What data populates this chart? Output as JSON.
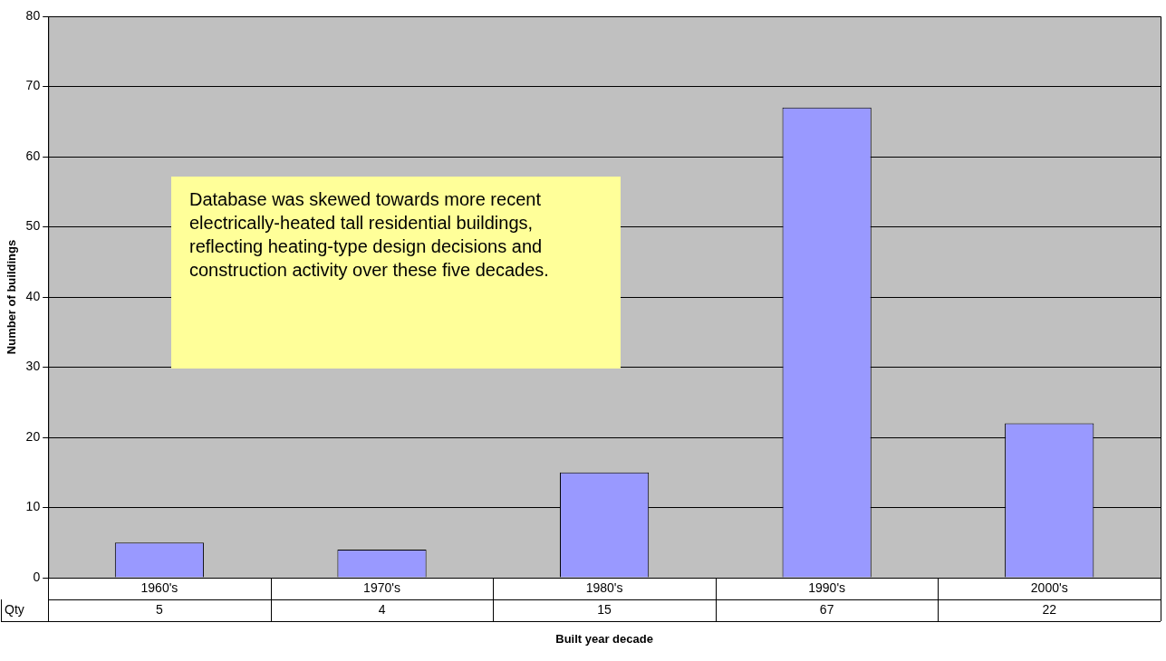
{
  "chart_data": {
    "type": "bar",
    "xlabel": "Built year decade",
    "ylabel": "Number of buildings",
    "categories": [
      "1960's",
      "1970's",
      "1980's",
      "1990's",
      "2000's"
    ],
    "series": [
      {
        "name": "Qty",
        "color": "#9999ff",
        "values": [
          5,
          4,
          15,
          67,
          22
        ]
      }
    ],
    "ylim": [
      0,
      80
    ],
    "yticks": [
      0,
      10,
      20,
      30,
      40,
      50,
      60,
      70,
      80
    ],
    "grid": "y",
    "legend": false,
    "data_labels": true,
    "annotations": [
      "Database was skewed towards more recent electrically-heated tall residential buildings, reflecting heating-type design decisions and construction activity over these five decades."
    ]
  }
}
